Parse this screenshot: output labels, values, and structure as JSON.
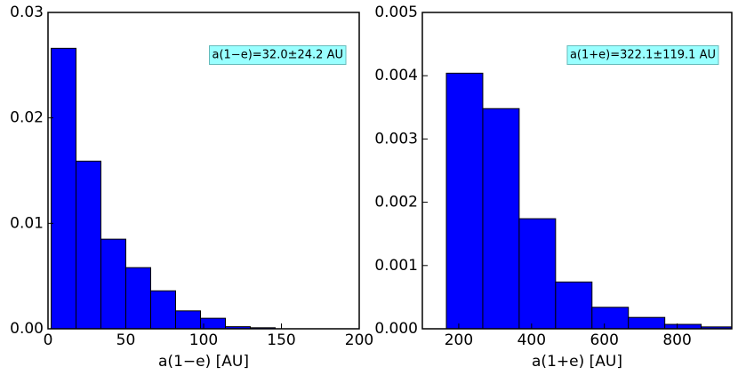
{
  "chart_data": [
    {
      "type": "histogram",
      "x_label": "a(1−e) [AU]",
      "annotation": "a(1−e)=32.0±24.2 AU",
      "bins": [
        2,
        18,
        34,
        50,
        66,
        82,
        98,
        114,
        130,
        146
      ],
      "values": [
        0.0266,
        0.0159,
        0.0085,
        0.0058,
        0.0036,
        0.0017,
        0.001,
        0.0002,
        0.0001
      ],
      "color": "#0000ff",
      "xlim": [
        0,
        200
      ],
      "ylim": [
        0,
        0.03
      ],
      "xticks": [
        0,
        50,
        100,
        150,
        200
      ],
      "yticks": [
        {
          "value": 0,
          "label": "0.00"
        },
        {
          "value": 0.01,
          "label": "0.01"
        },
        {
          "value": 0.02,
          "label": "0.02"
        },
        {
          "value": 0.03,
          "label": "0.03"
        }
      ]
    },
    {
      "type": "histogram",
      "x_label": "a(1+e) [AU]",
      "annotation": "a(1+e)=322.1±119.1 AU",
      "bins": [
        166,
        266,
        366,
        466,
        566,
        666,
        766,
        866,
        966
      ],
      "values": [
        0.00404,
        0.00348,
        0.00174,
        0.00074,
        0.00034,
        0.00018,
        7e-05,
        3e-05
      ],
      "color": "#0000ff",
      "xlim": [
        100,
        950
      ],
      "ylim": [
        0,
        0.005
      ],
      "xticks": [
        200,
        400,
        600,
        800
      ],
      "yticks": [
        {
          "value": 0,
          "label": "0.000"
        },
        {
          "value": 0.001,
          "label": "0.001"
        },
        {
          "value": 0.002,
          "label": "0.002"
        },
        {
          "value": 0.003,
          "label": "0.003"
        },
        {
          "value": 0.004,
          "label": "0.004"
        },
        {
          "value": 0.005,
          "label": "0.005"
        }
      ]
    }
  ]
}
